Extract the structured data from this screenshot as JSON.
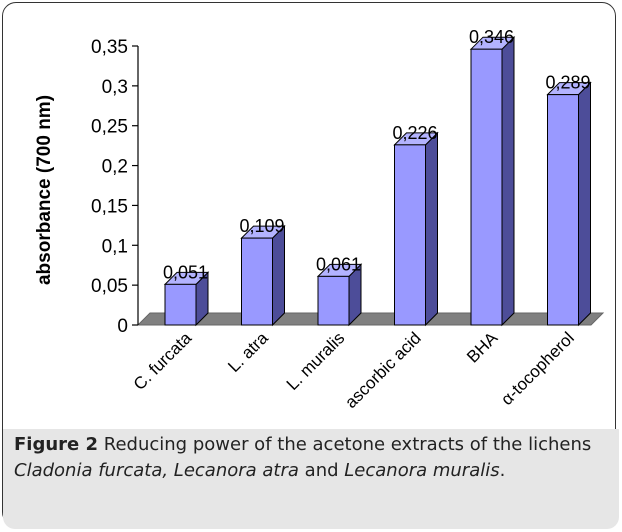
{
  "chart_data": {
    "type": "bar",
    "style": "3d",
    "categories": [
      "C. furcata",
      "L. atra",
      "L. muralis",
      "ascorbic acid",
      "BHA",
      "α-tocopherol"
    ],
    "values": [
      0.051,
      0.109,
      0.061,
      0.226,
      0.346,
      0.289
    ],
    "value_labels": [
      "0,051",
      "0,109",
      "0,061",
      "0,226",
      "0,346",
      "0,289"
    ],
    "ylabel": "absorbance (700 nm)",
    "ylim": [
      0,
      0.35
    ],
    "yticks": [
      0,
      0.05,
      0.1,
      0.15,
      0.2,
      0.25,
      0.3,
      0.35
    ],
    "ytick_labels": [
      "0",
      "0,05",
      "0,1",
      "0,15",
      "0,2",
      "0,25",
      "0,3",
      "0,35"
    ],
    "grid": false,
    "legend": "none",
    "colors": {
      "bar_front": "#9999ff",
      "bar_side": "#4d4d99",
      "bar_top": "#b3b3ff",
      "floor": "#808080"
    }
  },
  "caption": {
    "label": "Figure 2",
    "text1": " Reducing power of the acetone extracts of the lichens",
    "species1": "Cladonia furcata, Lecanora atra",
    "and": " and ",
    "species2": "Lecanora muralis",
    "end": "."
  }
}
